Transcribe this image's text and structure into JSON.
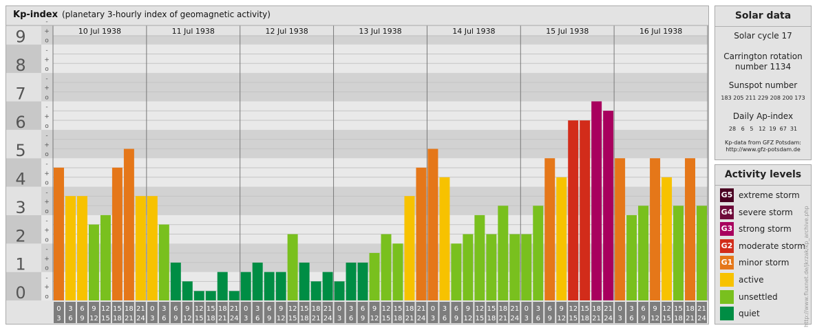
{
  "header": {
    "title": "Kp-index",
    "subtitle": "(planetary 3-hourly index of geomagnetic activity)"
  },
  "solar": {
    "title": "Solar data",
    "cycle": "Solar cycle 17",
    "carrington_line1": "Carrington rotation",
    "carrington_line2": "number 1134",
    "sunspot_title": "Sunspot number",
    "sunspot_values": "183 205 211 229 208 200 173",
    "ap_title": "Daily Ap-index",
    "ap_values": "28   6   5   12  19  67  31",
    "source_line1": "Kp-data from GFZ Potsdam:",
    "source_line2": "http://www.gfz-potsdam.de"
  },
  "activity": {
    "title": "Activity levels",
    "levels": [
      {
        "code": "G5",
        "label": "extreme storm",
        "color": "#4a0022"
      },
      {
        "code": "G4",
        "label": "severe storm",
        "color": "#6e0a3a"
      },
      {
        "code": "G3",
        "label": "strong storm",
        "color": "#a8005e"
      },
      {
        "code": "G2",
        "label": "moderate storm",
        "color": "#d22c1a"
      },
      {
        "code": "G1",
        "label": "minor storm",
        "color": "#e57719"
      },
      {
        "code": "",
        "label": "active",
        "color": "#f7c200"
      },
      {
        "code": "",
        "label": "unsettled",
        "color": "#79c01e"
      },
      {
        "code": "",
        "label": "quiet",
        "color": "#008d44"
      }
    ]
  },
  "watermark": "http://www.fluxnet.de/jkrzak/kp_archive.php",
  "chart_data": {
    "type": "bar",
    "title": "Kp-index",
    "subtitle": "(planetary 3-hourly index of geomagnetic activity)",
    "ylim": [
      0,
      9.67
    ],
    "yticks": [
      "0",
      "1",
      "2",
      "3",
      "4",
      "5",
      "6",
      "7",
      "8",
      "9"
    ],
    "minor_ticks": [
      "o",
      "+",
      "-"
    ],
    "days": [
      "10 Jul 1938",
      "11 Jul 1938",
      "12 Jul 1938",
      "13 Jul 1938",
      "14 Jul 1938",
      "15 Jul 1938",
      "16 Jul 1938"
    ],
    "interval_start": [
      "0",
      "3",
      "6",
      "9",
      "12",
      "15",
      "18",
      "21"
    ],
    "interval_end": [
      "3",
      "6",
      "9",
      "12",
      "15",
      "18",
      "21",
      "24"
    ],
    "values": [
      4.67,
      3.67,
      3.67,
      2.67,
      3.0,
      4.67,
      5.33,
      3.67,
      3.67,
      2.67,
      1.33,
      0.67,
      0.33,
      0.33,
      1.0,
      0.33,
      1.0,
      1.33,
      1.0,
      1.0,
      2.33,
      1.33,
      0.67,
      1.0,
      0.67,
      1.33,
      1.33,
      1.67,
      2.33,
      2.0,
      3.67,
      4.67,
      5.33,
      4.33,
      2.0,
      2.33,
      3.0,
      2.33,
      3.33,
      2.33,
      2.33,
      3.33,
      5.0,
      4.33,
      6.33,
      6.33,
      7.0,
      6.67,
      5.0,
      3.0,
      3.33,
      5.0,
      4.33,
      3.33,
      5.0,
      3.33
    ],
    "colors": {
      "quiet": "#008d44",
      "unsettled": "#79c01e",
      "active": "#f7c200",
      "minor": "#e57719",
      "moderate": "#d22c1a",
      "strong": "#a8005e",
      "severe": "#6e0a3a",
      "extreme": "#4a0022"
    },
    "grid": true
  }
}
